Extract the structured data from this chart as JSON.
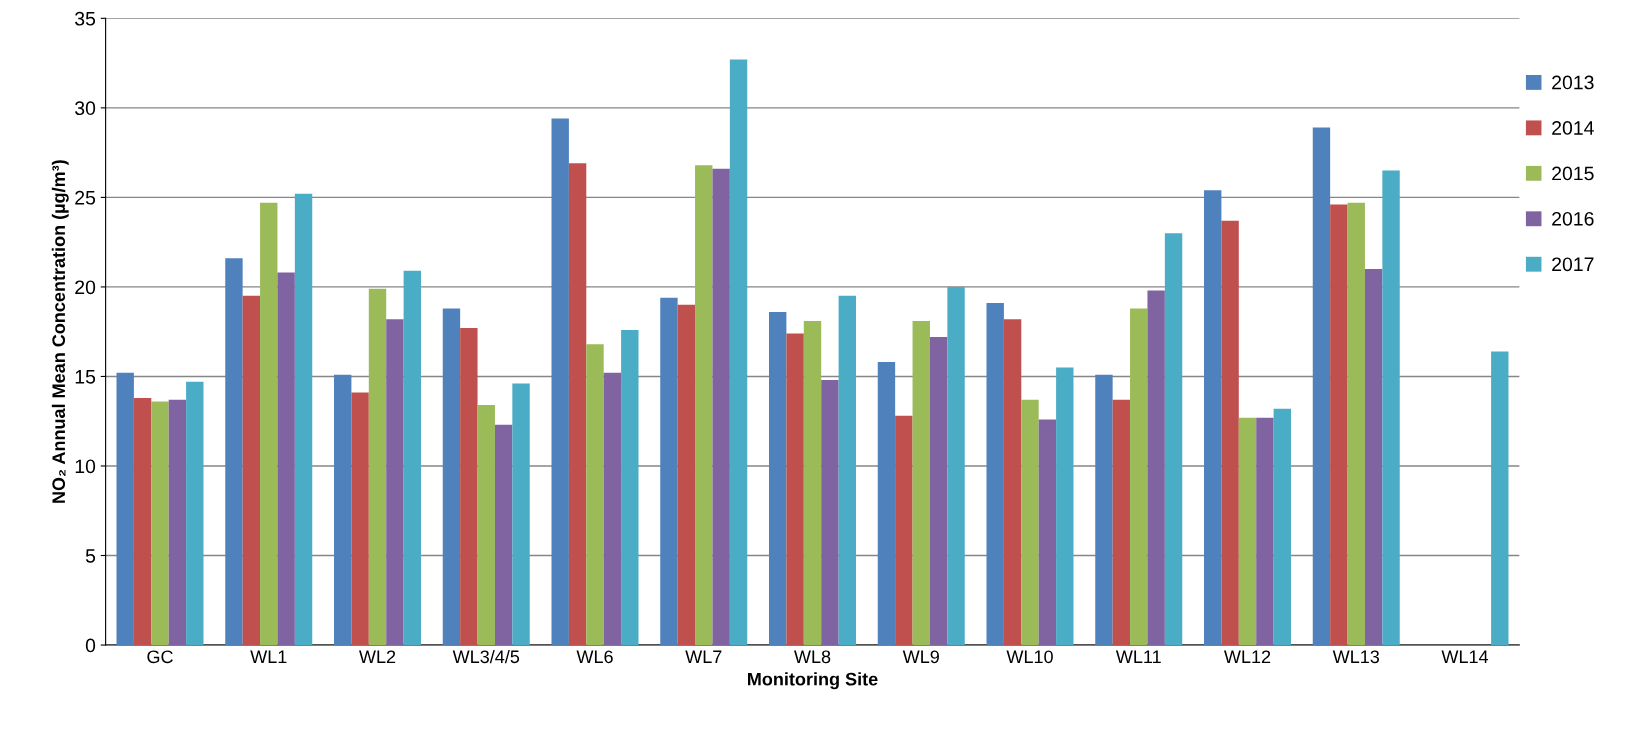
{
  "chart_data": {
    "type": "bar",
    "xlabel": "Monitoring Site",
    "ylabel": "NO₂ Annual Mean Concentration (µg/m³)",
    "categories": [
      "GC",
      "WL1",
      "WL2",
      "WL3/4/5",
      "WL6",
      "WL7",
      "WL8",
      "WL9",
      "WL10",
      "WL11",
      "WL12",
      "WL13",
      "WL14"
    ],
    "series": [
      {
        "name": "2013",
        "color": "#4f81bd",
        "values": [
          15.2,
          21.6,
          15.1,
          18.8,
          29.4,
          19.4,
          18.6,
          15.8,
          19.1,
          15.1,
          25.4,
          28.9,
          null
        ]
      },
      {
        "name": "2014",
        "color": "#c0504d",
        "values": [
          13.8,
          19.5,
          14.1,
          17.7,
          26.9,
          19.0,
          17.4,
          12.8,
          18.2,
          13.7,
          23.7,
          24.6,
          null
        ]
      },
      {
        "name": "2015",
        "color": "#9bbb59",
        "values": [
          13.6,
          24.7,
          19.9,
          13.4,
          16.8,
          26.8,
          18.1,
          18.1,
          13.7,
          18.8,
          12.7,
          24.7,
          null
        ]
      },
      {
        "name": "2016",
        "color": "#8064a2",
        "values": [
          13.7,
          20.8,
          18.2,
          12.3,
          15.2,
          26.6,
          14.8,
          17.2,
          12.6,
          19.8,
          12.7,
          21.0,
          null
        ]
      },
      {
        "name": "2017",
        "color": "#4bacc6",
        "values": [
          14.7,
          25.2,
          20.9,
          14.6,
          17.6,
          32.7,
          19.5,
          20.0,
          15.5,
          23.0,
          13.2,
          26.5,
          16.4
        ]
      }
    ],
    "ylim": [
      0,
      35
    ],
    "yticks": [
      0,
      5,
      10,
      15,
      20,
      25,
      30,
      35
    ],
    "grid": "y",
    "legend": "right"
  }
}
